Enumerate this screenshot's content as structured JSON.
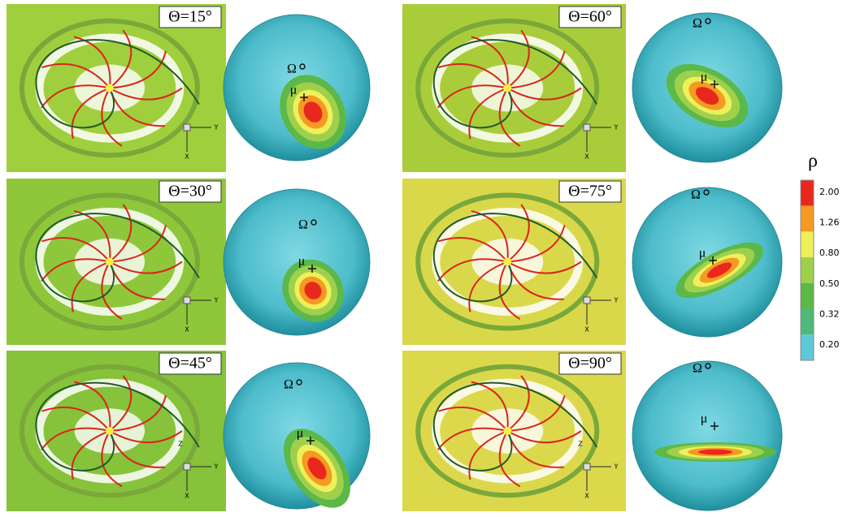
{
  "panels": [
    {
      "theta_label": "Θ=15°",
      "omega_label": "Ω",
      "mu_label": "μ",
      "axis_labels": [
        "Y",
        "X"
      ]
    },
    {
      "theta_label": "Θ=30°",
      "omega_label": "Ω",
      "mu_label": "μ",
      "axis_labels": [
        "Y",
        "X"
      ]
    },
    {
      "theta_label": "Θ=45°",
      "omega_label": "Ω",
      "mu_label": "μ",
      "axis_labels": [
        "Z",
        "Y",
        "X"
      ]
    },
    {
      "theta_label": "Θ=60°",
      "omega_label": "Ω",
      "mu_label": "μ",
      "axis_labels": [
        "Y",
        "X"
      ]
    },
    {
      "theta_label": "Θ=75°",
      "omega_label": "Ω",
      "mu_label": "μ",
      "axis_labels": [
        "Y",
        "X"
      ]
    },
    {
      "theta_label": "Θ=90°",
      "omega_label": "Ω",
      "mu_label": "μ",
      "axis_labels": [
        "Z",
        "Y",
        "X"
      ]
    }
  ],
  "colorbar": {
    "title": "ρ",
    "labels": [
      "2.00",
      "1.26",
      "0.80",
      "0.50",
      "0.32",
      "0.20"
    ]
  }
}
